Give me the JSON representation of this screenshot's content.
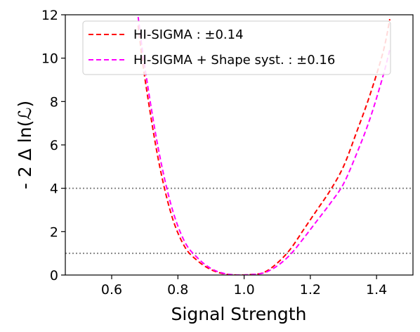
{
  "chart_data": {
    "type": "line",
    "xlabel": "Signal Strength",
    "ylabel": "- 2 Δ ln(ℒ)",
    "xlim": [
      0.46,
      1.51
    ],
    "ylim": [
      0,
      12
    ],
    "xticks": [
      0.6,
      0.8,
      1.0,
      1.2,
      1.4
    ],
    "xtick_labels": [
      "0.6",
      "0.8",
      "1.0",
      "1.2",
      "1.4"
    ],
    "yticks": [
      0,
      2,
      4,
      6,
      8,
      10,
      12
    ],
    "ytick_labels": [
      "0",
      "2",
      "4",
      "6",
      "8",
      "10",
      "12"
    ],
    "reference_lines": [
      1,
      4
    ],
    "legend_placement": "top-center",
    "grid": false,
    "series": [
      {
        "name": "HI-SIGMA : ±0.14",
        "color": "#ff0000",
        "style": "dashed",
        "points": [
          [
            0.68,
            11.5
          ],
          [
            0.7,
            9.1
          ],
          [
            0.74,
            5.4
          ],
          [
            0.78,
            2.8
          ],
          [
            0.82,
            1.32
          ],
          [
            0.86,
            0.65
          ],
          [
            0.9,
            0.25
          ],
          [
            0.94,
            0.05
          ],
          [
            0.98,
            0.0
          ],
          [
            1.02,
            0.02
          ],
          [
            1.06,
            0.12
          ],
          [
            1.1,
            0.55
          ],
          [
            1.14,
            1.2
          ],
          [
            1.18,
            2.1
          ],
          [
            1.22,
            3.0
          ],
          [
            1.26,
            3.9
          ],
          [
            1.3,
            5.0
          ],
          [
            1.34,
            6.6
          ],
          [
            1.38,
            8.3
          ],
          [
            1.42,
            10.3
          ],
          [
            1.44,
            11.8
          ]
        ]
      },
      {
        "name": "HI-SIGMA + Shape syst. : ±0.16",
        "color": "#ff00ff",
        "style": "dashed",
        "points": [
          [
            0.68,
            11.9
          ],
          [
            0.7,
            9.6
          ],
          [
            0.74,
            5.9
          ],
          [
            0.78,
            3.2
          ],
          [
            0.82,
            1.55
          ],
          [
            0.86,
            0.78
          ],
          [
            0.9,
            0.3
          ],
          [
            0.94,
            0.07
          ],
          [
            0.98,
            0.0
          ],
          [
            1.02,
            0.02
          ],
          [
            1.06,
            0.1
          ],
          [
            1.1,
            0.42
          ],
          [
            1.14,
            0.95
          ],
          [
            1.18,
            1.7
          ],
          [
            1.22,
            2.5
          ],
          [
            1.26,
            3.3
          ],
          [
            1.3,
            4.2
          ],
          [
            1.34,
            5.6
          ],
          [
            1.38,
            7.2
          ],
          [
            1.42,
            9.2
          ],
          [
            1.44,
            10.4
          ]
        ]
      }
    ]
  }
}
